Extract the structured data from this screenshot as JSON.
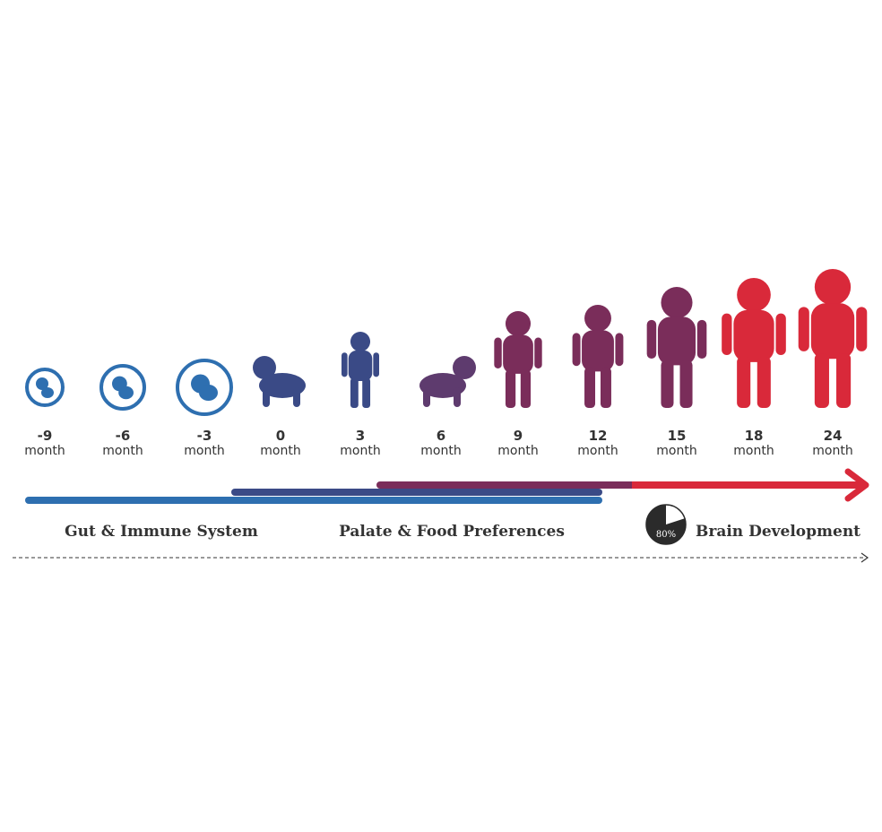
{
  "stages": [
    {
      "age": "-9",
      "unit": "month"
    },
    {
      "age": "-6",
      "unit": "month"
    },
    {
      "age": "-3",
      "unit": "month"
    },
    {
      "age": "0",
      "unit": "month"
    },
    {
      "age": "3",
      "unit": "month"
    },
    {
      "age": "6",
      "unit": "month"
    },
    {
      "age": "9",
      "unit": "month"
    },
    {
      "age": "12",
      "unit": "month"
    },
    {
      "age": "15",
      "unit": "month"
    },
    {
      "age": "18",
      "unit": "month"
    },
    {
      "age": "24",
      "unit": "month"
    }
  ],
  "bars": [
    {
      "label": "Gut & Immune System"
    },
    {
      "label": "Palate & Food Preferences"
    },
    {
      "label": "Brain Development",
      "badge": {
        "value": 80,
        "label": "80%"
      }
    }
  ]
}
